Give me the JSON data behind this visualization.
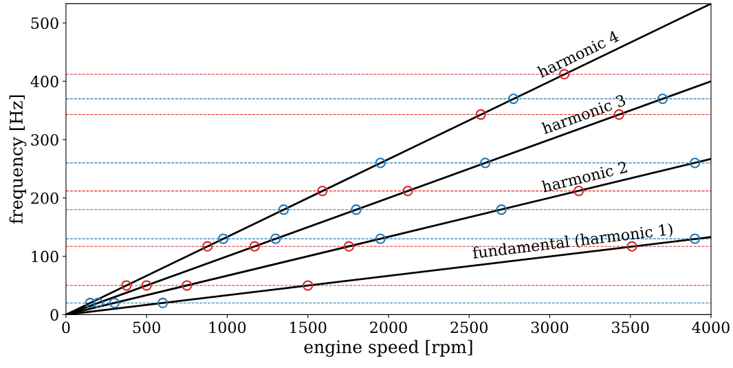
{
  "chart_data": {
    "type": "line",
    "xlabel": "engine speed [rpm]",
    "ylabel": "frequency [Hz]",
    "xlim": [
      0,
      4000
    ],
    "ylim": [
      0,
      533
    ],
    "xticks": [
      0,
      500,
      1000,
      1500,
      2000,
      2500,
      3000,
      3500,
      4000
    ],
    "yticks": [
      0,
      100,
      200,
      300,
      400,
      500
    ],
    "grid": false,
    "line_style": "solid",
    "series": [
      {
        "color": "#000000",
        "x": [
          0,
          4000
        ],
        "values": [
          0,
          133
        ],
        "marker": "none"
      },
      {
        "color": "#000000",
        "x": [
          0,
          4000
        ],
        "values": [
          0,
          267
        ],
        "marker": "none"
      },
      {
        "color": "#000000",
        "x": [
          0,
          4000
        ],
        "values": [
          0,
          400
        ],
        "marker": "none"
      },
      {
        "color": "#000000",
        "x": [
          0,
          4000
        ],
        "values": [
          0,
          533
        ],
        "marker": "none"
      },
      {
        "type": "scatter",
        "color": "#1f77b4",
        "marker": "circle",
        "x": [
          600,
          300,
          200,
          150,
          3900,
          1950,
          1300,
          975,
          2700,
          1800,
          1350,
          3900,
          2600,
          1950,
          3700,
          2775
        ],
        "values": [
          20,
          20,
          20,
          20,
          130,
          130,
          130,
          130,
          180,
          180,
          180,
          260,
          260,
          260,
          370,
          370
        ]
      },
      {
        "type": "scatter",
        "color": "#d62728",
        "marker": "circle",
        "x": [
          1500,
          750,
          500,
          375,
          3510,
          1755,
          1170,
          877.5,
          3180,
          2120,
          1590,
          3430,
          2572.5,
          3090
        ],
        "values": [
          50,
          50,
          50,
          50,
          117,
          117,
          117,
          117,
          212,
          212,
          212,
          343,
          343,
          412
        ]
      }
    ],
    "ref_lines": [
      {
        "axis": "y",
        "value": 20,
        "color": "#1f77b4",
        "line_style": "dashed"
      },
      {
        "axis": "y",
        "value": 130,
        "color": "#1f77b4",
        "line_style": "dashed"
      },
      {
        "axis": "y",
        "value": 180,
        "color": "#1f77b4",
        "line_style": "dashed"
      },
      {
        "axis": "y",
        "value": 260,
        "color": "#1f77b4",
        "line_style": "dashed"
      },
      {
        "axis": "y",
        "value": 370,
        "color": "#1f77b4",
        "line_style": "dashed"
      },
      {
        "axis": "y",
        "value": 50,
        "color": "#d62728",
        "line_style": "dashed"
      },
      {
        "axis": "y",
        "value": 117,
        "color": "#d62728",
        "line_style": "dashed"
      },
      {
        "axis": "y",
        "value": 212,
        "color": "#d62728",
        "line_style": "dashed"
      },
      {
        "axis": "y",
        "value": 343,
        "color": "#d62728",
        "line_style": "dashed"
      },
      {
        "axis": "y",
        "value": 412,
        "color": "#d62728",
        "line_style": "dashed"
      }
    ],
    "annotations": [
      {
        "text": "harmonic 4",
        "x": 3200,
        "y": 426.7
      },
      {
        "text": "harmonic 3",
        "x": 3230,
        "y": 323
      },
      {
        "text": "harmonic 2",
        "x": 3230,
        "y": 215.3
      },
      {
        "text": "fundamental (harmonic 1)",
        "x": 3150,
        "y": 105
      }
    ]
  }
}
